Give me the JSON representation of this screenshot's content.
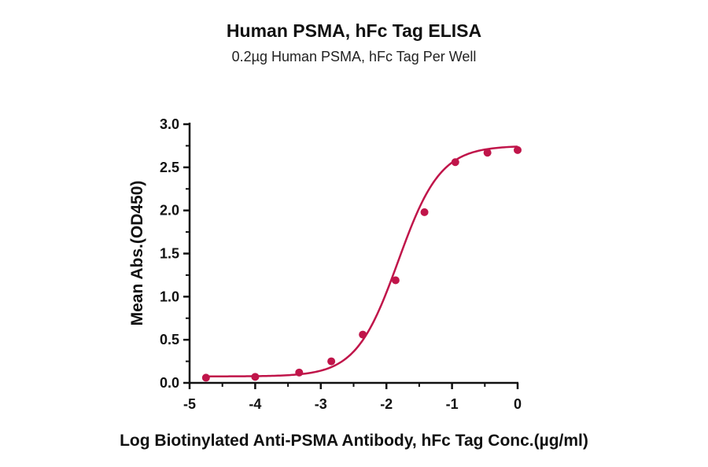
{
  "chart_data": {
    "type": "scatter",
    "title": "Human PSMA, hFc Tag ELISA",
    "subtitle": "0.2µg Human PSMA, hFc Tag Per Well",
    "xlabel": "Log Biotinylated Anti-PSMA Antibody, hFc Tag Conc.(µg/ml)",
    "ylabel": "Mean Abs.(OD450)",
    "xlim": [
      -5,
      0
    ],
    "ylim": [
      0,
      3.0
    ],
    "x_ticks": [
      "-5",
      "-4",
      "-3",
      "-2",
      "-1",
      "0"
    ],
    "y_ticks": [
      "0.0",
      "0.5",
      "1.0",
      "1.5",
      "2.0",
      "2.5",
      "3.0"
    ],
    "grid": false,
    "color": "#c0154a",
    "series": [
      {
        "points": [
          {
            "x": -4.75,
            "y": 0.06
          },
          {
            "x": -4.0,
            "y": 0.07
          },
          {
            "x": -3.33,
            "y": 0.12
          },
          {
            "x": -2.84,
            "y": 0.25
          },
          {
            "x": -2.36,
            "y": 0.56
          },
          {
            "x": -1.86,
            "y": 1.19
          },
          {
            "x": -1.42,
            "y": 1.98
          },
          {
            "x": -0.95,
            "y": 2.56
          },
          {
            "x": -0.46,
            "y": 2.67
          },
          {
            "x": 0.0,
            "y": 2.7
          }
        ],
        "fit": {
          "bottom": 0.075,
          "top": 2.75,
          "log_ec50": -1.82,
          "hill": 1.35,
          "x_range": [
            -4.75,
            0.0
          ]
        }
      }
    ]
  }
}
